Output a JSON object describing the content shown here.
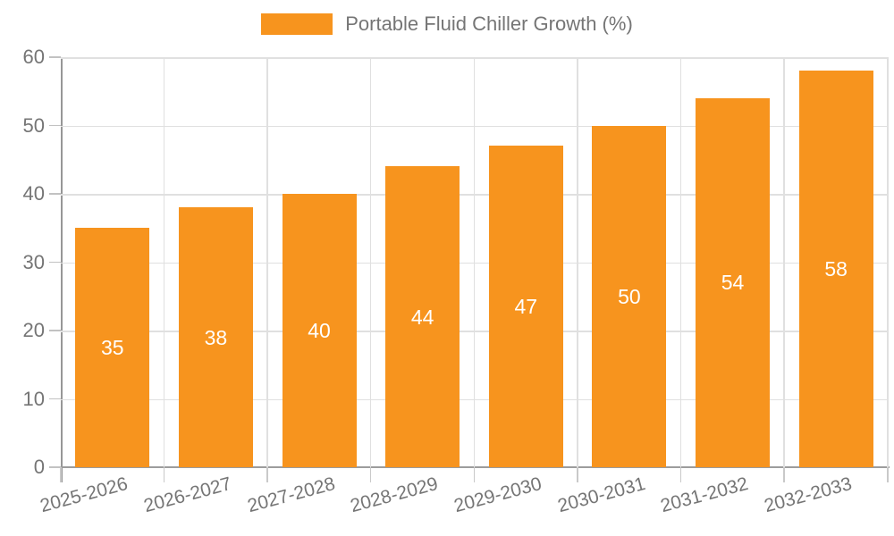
{
  "legend": {
    "items": [
      {
        "label": "Portable Fluid Chiller Growth (%)",
        "color": "#f7941e"
      }
    ]
  },
  "chart_data": {
    "type": "bar",
    "title": "Portable Fluid Chiller Growth (%)",
    "categories": [
      "2025-2026",
      "2026-2027",
      "2027-2028",
      "2028-2029",
      "2029-2030",
      "2030-2031",
      "2031-2032",
      "2032-2033"
    ],
    "values": [
      35,
      38,
      40,
      44,
      47,
      50,
      54,
      58
    ],
    "bar_labels": [
      "35",
      "38",
      "40",
      "44",
      "47",
      "50",
      "54",
      "58"
    ],
    "xlabel": "",
    "ylabel": "",
    "ylim": [
      0,
      60
    ],
    "yticks": [
      0,
      10,
      20,
      30,
      40,
      50,
      60
    ],
    "grid": true,
    "legend_position": "top-center",
    "colors": {
      "bar": "#f7941e",
      "bar_label": "#ffffff",
      "axis_text": "#757575",
      "grid_line": "#e0e0e0",
      "axis_line": "#9c9c9c",
      "tick_mark": "#c9c9c9",
      "background": "#ffffff"
    }
  }
}
